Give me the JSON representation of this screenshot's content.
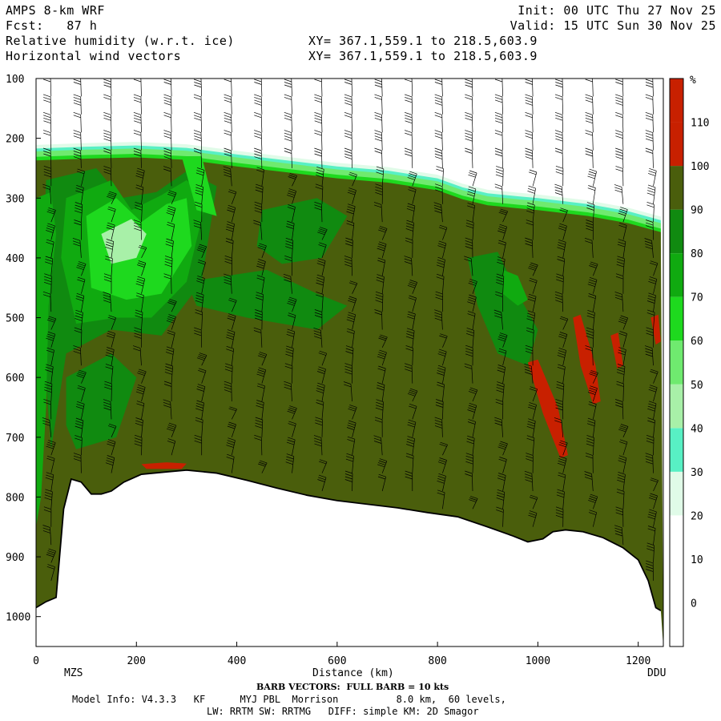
{
  "header": {
    "model": "AMPS 8-km WRF",
    "init": "Init: 00 UTC Thu 27 Nov 25",
    "fcst": "Fcst:   87 h",
    "valid": "Valid: 15 UTC Sun 30 Nov 25",
    "field1": "Relative humidity (w.r.t. ice)",
    "field1_xy": "XY= 367.1,559.1 to 218.5,603.9",
    "field2": "Horizontal wind vectors",
    "field2_xy": "XY= 367.1,559.1 to 218.5,603.9"
  },
  "footer": {
    "barb_note": "BARB VECTORS:  FULL BARB = 10 kts",
    "model_info": "Model Info: V4.3.3   KF      MYJ PBL  Morrison          8.0 km,  60 levels,",
    "physics": "LW: RRTM SW: RRTMG   DIFF: simple KM: 2D Smagor"
  },
  "chart_data": {
    "type": "heatmap",
    "title": "Relative humidity (w.r.t. ice)",
    "xlabel": "Distance (km)",
    "ylabel": "",
    "xlim": [
      0,
      1250
    ],
    "ylim": [
      1050,
      100
    ],
    "x_ticks": [
      0,
      200,
      400,
      600,
      800,
      1000,
      1200
    ],
    "y_ticks": [
      100,
      200,
      300,
      400,
      500,
      600,
      700,
      800,
      900,
      1000
    ],
    "x_endpoints": {
      "left": "MZS",
      "right": "DDU"
    },
    "colorbar": {
      "unit": "%",
      "levels": [
        0,
        10,
        20,
        30,
        40,
        50,
        60,
        70,
        80,
        90,
        100,
        110
      ],
      "colors": [
        "#ffffff",
        "#ffffff",
        "#ffffff",
        "#e0fbe8",
        "#58f0c4",
        "#a8f0a8",
        "#6fea6f",
        "#1ed91e",
        "#10aa10",
        "#108a10",
        "#4a5e0c",
        "#c82000"
      ]
    },
    "terrain_surface": [
      [
        0,
        985
      ],
      [
        20,
        975
      ],
      [
        40,
        968
      ],
      [
        55,
        820
      ],
      [
        70,
        770
      ],
      [
        90,
        775
      ],
      [
        110,
        795
      ],
      [
        130,
        795
      ],
      [
        150,
        790
      ],
      [
        175,
        775
      ],
      [
        210,
        762
      ],
      [
        260,
        758
      ],
      [
        300,
        755
      ],
      [
        360,
        760
      ],
      [
        420,
        772
      ],
      [
        480,
        785
      ],
      [
        540,
        797
      ],
      [
        600,
        806
      ],
      [
        660,
        812
      ],
      [
        720,
        818
      ],
      [
        780,
        826
      ],
      [
        840,
        833
      ],
      [
        900,
        850
      ],
      [
        950,
        865
      ],
      [
        980,
        875
      ],
      [
        1010,
        870
      ],
      [
        1030,
        858
      ],
      [
        1055,
        855
      ],
      [
        1090,
        858
      ],
      [
        1130,
        868
      ],
      [
        1170,
        885
      ],
      [
        1200,
        905
      ],
      [
        1220,
        940
      ],
      [
        1235,
        985
      ],
      [
        1245,
        990
      ]
    ],
    "moist_top": [
      [
        0,
        225
      ],
      [
        100,
        222
      ],
      [
        200,
        220
      ],
      [
        300,
        224
      ],
      [
        400,
        235
      ],
      [
        500,
        245
      ],
      [
        600,
        255
      ],
      [
        700,
        262
      ],
      [
        800,
        275
      ],
      [
        850,
        290
      ],
      [
        900,
        300
      ],
      [
        960,
        305
      ],
      [
        1000,
        308
      ],
      [
        1100,
        318
      ],
      [
        1180,
        330
      ],
      [
        1245,
        345
      ]
    ],
    "zones": [
      {
        "level": 100,
        "pts": [
          [
            0,
            230
          ],
          [
            1240,
            240
          ],
          [
            1240,
            980
          ],
          [
            0,
            980
          ]
        ]
      },
      {
        "level": 90,
        "pts": [
          [
            20,
            270
          ],
          [
            120,
            250
          ],
          [
            170,
            300
          ],
          [
            240,
            290
          ],
          [
            300,
            255
          ],
          [
            360,
            280
          ],
          [
            330,
            440
          ],
          [
            250,
            530
          ],
          [
            150,
            520
          ],
          [
            60,
            560
          ],
          [
            30,
            720
          ],
          [
            10,
            500
          ]
        ]
      },
      {
        "level": 80,
        "pts": [
          [
            60,
            300
          ],
          [
            150,
            270
          ],
          [
            190,
            320
          ],
          [
            250,
            295
          ],
          [
            300,
            270
          ],
          [
            340,
            300
          ],
          [
            300,
            440
          ],
          [
            230,
            500
          ],
          [
            160,
            500
          ],
          [
            80,
            510
          ],
          [
            50,
            400
          ]
        ]
      },
      {
        "level": 70,
        "pts": [
          [
            100,
            330
          ],
          [
            160,
            300
          ],
          [
            210,
            340
          ],
          [
            260,
            310
          ],
          [
            300,
            300
          ],
          [
            310,
            380
          ],
          [
            250,
            460
          ],
          [
            180,
            470
          ],
          [
            110,
            450
          ]
        ]
      },
      {
        "level": 50,
        "pts": [
          [
            130,
            360
          ],
          [
            190,
            335
          ],
          [
            220,
            360
          ],
          [
            200,
            400
          ],
          [
            150,
            410
          ]
        ]
      },
      {
        "level": 70,
        "pts": [
          [
            290,
            230
          ],
          [
            330,
            230
          ],
          [
            360,
            330
          ],
          [
            320,
            320
          ]
        ]
      },
      {
        "level": 90,
        "pts": [
          [
            300,
            440
          ],
          [
            460,
            420
          ],
          [
            560,
            460
          ],
          [
            620,
            480
          ],
          [
            560,
            520
          ],
          [
            420,
            500
          ],
          [
            320,
            480
          ]
        ]
      },
      {
        "level": 90,
        "pts": [
          [
            450,
            320
          ],
          [
            560,
            300
          ],
          [
            620,
            330
          ],
          [
            570,
            400
          ],
          [
            490,
            410
          ],
          [
            440,
            380
          ]
        ]
      },
      {
        "level": 90,
        "pts": [
          [
            860,
            400
          ],
          [
            920,
            390
          ],
          [
            960,
            460
          ],
          [
            1000,
            520
          ],
          [
            980,
            580
          ],
          [
            920,
            560
          ],
          [
            880,
            480
          ]
        ]
      },
      {
        "level": 80,
        "pts": [
          [
            930,
            420
          ],
          [
            960,
            430
          ],
          [
            980,
            470
          ],
          [
            960,
            480
          ],
          [
            930,
            460
          ]
        ]
      },
      {
        "level": 90,
        "pts": [
          [
            60,
            600
          ],
          [
            150,
            560
          ],
          [
            200,
            600
          ],
          [
            160,
            700
          ],
          [
            80,
            720
          ],
          [
            60,
            680
          ]
        ]
      },
      {
        "level": 80,
        "pts": [
          [
            0,
            300
          ],
          [
            30,
            290
          ],
          [
            40,
            360
          ],
          [
            25,
            480
          ],
          [
            20,
            650
          ],
          [
            10,
            800
          ],
          [
            0,
            850
          ]
        ]
      },
      {
        "level": 110,
        "pts": [
          [
            980,
            575
          ],
          [
            1000,
            570
          ],
          [
            1040,
            650
          ],
          [
            1060,
            730
          ],
          [
            1045,
            735
          ],
          [
            1010,
            660
          ]
        ]
      },
      {
        "level": 110,
        "pts": [
          [
            1070,
            500
          ],
          [
            1085,
            495
          ],
          [
            1115,
            580
          ],
          [
            1125,
            640
          ],
          [
            1110,
            645
          ],
          [
            1085,
            580
          ]
        ]
      },
      {
        "level": 110,
        "pts": [
          [
            1145,
            530
          ],
          [
            1160,
            525
          ],
          [
            1170,
            580
          ],
          [
            1158,
            585
          ]
        ]
      },
      {
        "level": 110,
        "pts": [
          [
            1225,
            500
          ],
          [
            1240,
            495
          ],
          [
            1245,
            540
          ],
          [
            1235,
            545
          ]
        ]
      },
      {
        "level": 110,
        "pts": [
          [
            210,
            745
          ],
          [
            260,
            742
          ],
          [
            300,
            744
          ],
          [
            290,
            753
          ],
          [
            220,
            753
          ]
        ]
      }
    ],
    "wind_barbs": {
      "note": "Wind barbs drawn along vertical columns; full barb = 10 kts",
      "columns_km": [
        30,
        90,
        150,
        210,
        270,
        330,
        390,
        450,
        510,
        570,
        630,
        690,
        750,
        810,
        870,
        930,
        990,
        1050,
        1110,
        1170,
        1230
      ],
      "levels_hPa": [
        130,
        160,
        190,
        220,
        250,
        280,
        310,
        340,
        370,
        400,
        430,
        460,
        490,
        520,
        550,
        580,
        610,
        640,
        670,
        700,
        730,
        760,
        790,
        820,
        850,
        880,
        910,
        940
      ]
    }
  }
}
